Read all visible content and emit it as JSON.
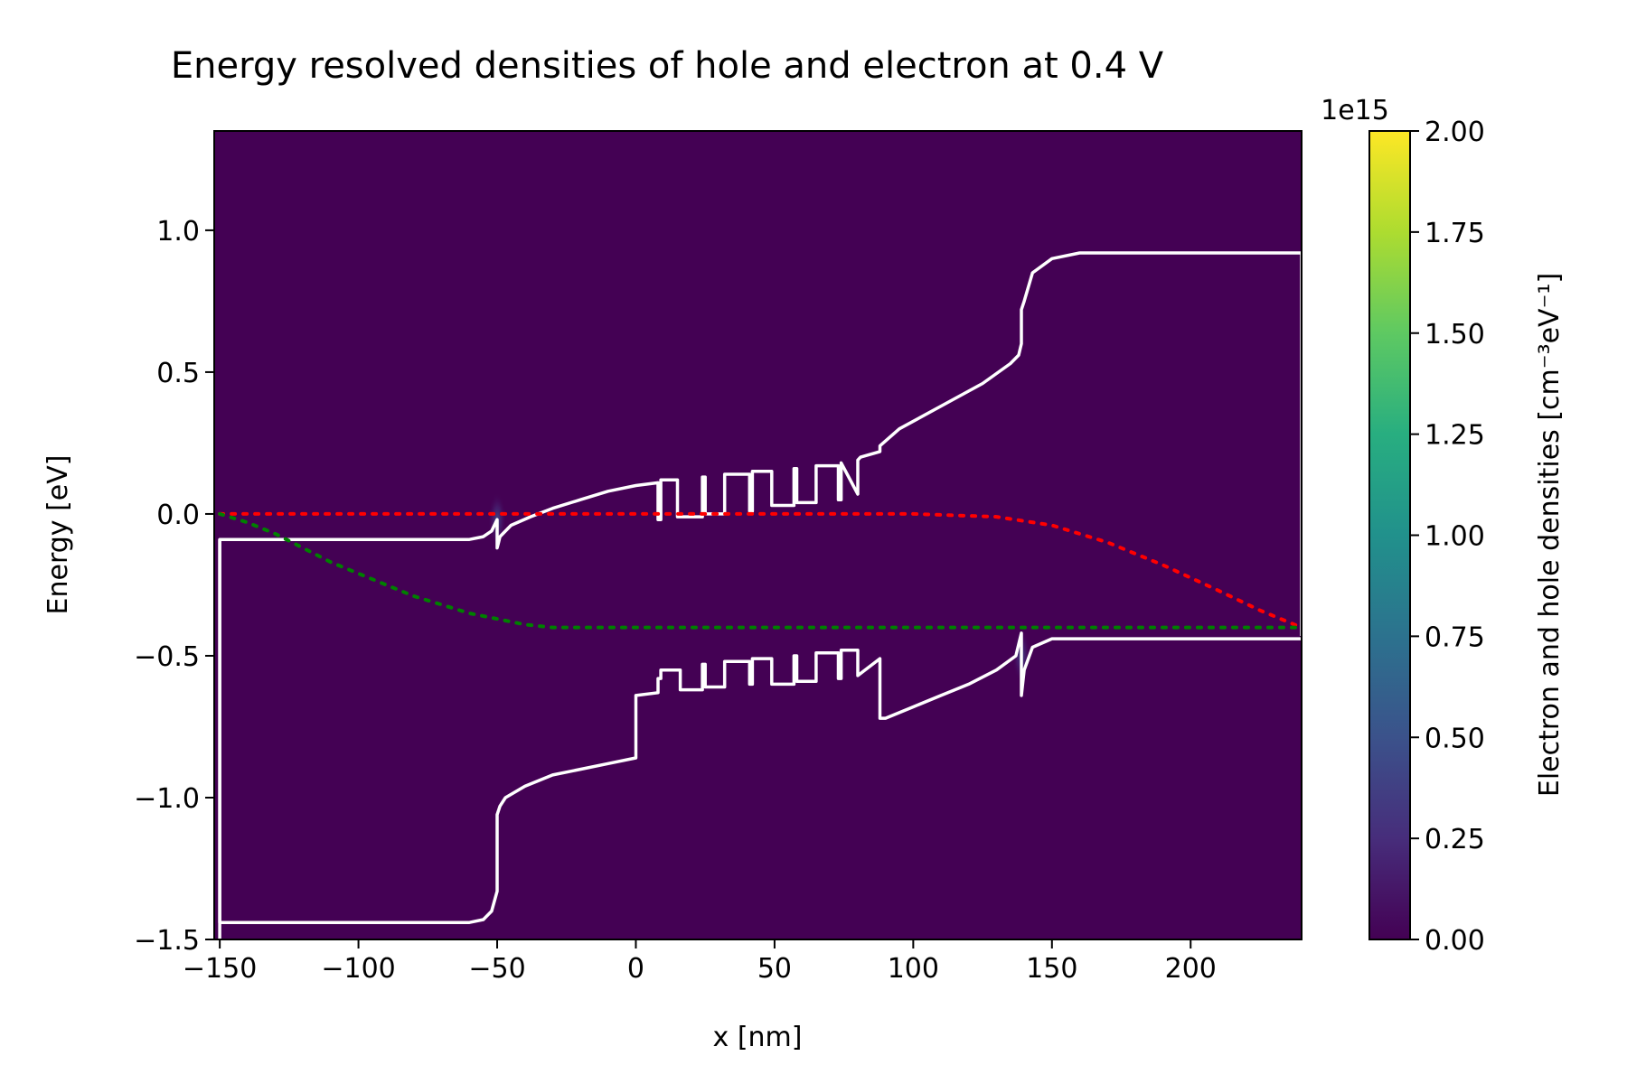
{
  "chart_data": {
    "type": "heatmap",
    "title": "Energy resolved densities of hole and electron at 0.4 V",
    "xlabel": "x [nm]",
    "ylabel": "Energy [eV]",
    "xlim": [
      -152,
      240
    ],
    "ylim": [
      -1.5,
      1.35
    ],
    "xticks": [
      -150,
      -100,
      -50,
      0,
      50,
      100,
      150,
      200
    ],
    "xtick_labels": [
      "−150",
      "−100",
      "−50",
      "0",
      "50",
      "100",
      "150",
      "200"
    ],
    "yticks": [
      -1.5,
      -1.0,
      -0.5,
      0.0,
      0.5,
      1.0
    ],
    "ytick_labels": [
      "−1.5",
      "−1.0",
      "−0.5",
      "0.0",
      "0.5",
      "1.0"
    ],
    "grid": false,
    "colormap": "viridis",
    "background_color": "#440154",
    "colorbar": {
      "label": "Electron and hole densities [cm⁻³eV⁻¹]",
      "multiplier": "1e15",
      "range": [
        0,
        2.0
      ],
      "ticks": [
        0.0,
        0.25,
        0.5,
        0.75,
        1.0,
        1.25,
        1.5,
        1.75,
        2.0
      ],
      "tick_labels": [
        "0.00",
        "0.25",
        "0.50",
        "0.75",
        "1.00",
        "1.25",
        "1.50",
        "1.75",
        "2.00"
      ]
    },
    "density_spots": [
      {
        "x": -50,
        "y": -0.02,
        "intensity": 0.5
      },
      {
        "x": 139,
        "y": -0.5,
        "intensity": 0.5
      }
    ],
    "series": [
      {
        "color": "#ffffff",
        "style": "solid",
        "x": [
          -150,
          -150,
          -149,
          -60,
          -55,
          -52,
          -50,
          -50,
          -50,
          -49.5,
          -49,
          -45,
          -38,
          -30,
          -20,
          -10,
          0,
          0,
          8,
          8,
          9,
          9,
          15,
          15,
          24,
          24,
          25,
          25,
          32,
          32,
          41,
          41,
          42,
          42,
          49,
          49,
          57,
          57,
          58,
          58,
          65,
          65,
          73,
          73,
          74,
          74,
          80,
          80,
          81,
          88,
          88,
          95,
          110,
          125,
          135,
          138,
          139,
          139,
          140,
          143,
          150,
          160,
          240,
          240
        ],
        "y": [
          -1.5,
          -0.09,
          -0.09,
          -0.09,
          -0.08,
          -0.06,
          -0.02,
          -0.12,
          -0.12,
          -0.1,
          -0.08,
          -0.04,
          -0.01,
          0.02,
          0.05,
          0.08,
          0.1,
          0.1,
          0.11,
          -0.02,
          -0.02,
          0.12,
          0.12,
          -0.01,
          -0.01,
          0.13,
          0.13,
          -0.0,
          -0.0,
          0.14,
          0.14,
          0.01,
          0.01,
          0.15,
          0.15,
          0.03,
          0.03,
          0.16,
          0.16,
          0.04,
          0.04,
          0.17,
          0.17,
          0.05,
          0.05,
          0.18,
          0.07,
          0.19,
          0.2,
          0.22,
          0.24,
          0.3,
          0.38,
          0.46,
          0.53,
          0.56,
          0.6,
          0.72,
          0.75,
          0.85,
          0.9,
          0.92,
          0.92,
          -0.43
        ]
      },
      {
        "color": "#ffffff",
        "style": "solid",
        "x": [
          -150,
          -150,
          -100,
          -60,
          -55,
          -52,
          -50,
          -50,
          -49,
          -47,
          -40,
          -30,
          -20,
          -10,
          0,
          0,
          8,
          8,
          9,
          9,
          16,
          16,
          24,
          24,
          25,
          25,
          32,
          32,
          41,
          41,
          42,
          42,
          49,
          49,
          57,
          57,
          58,
          58,
          65,
          65,
          73,
          73,
          74,
          74,
          80,
          80,
          88,
          88,
          90,
          100,
          110,
          120,
          130,
          137,
          139,
          139,
          140,
          143,
          150,
          240
        ],
        "y": [
          -0.09,
          -1.44,
          -1.44,
          -1.44,
          -1.43,
          -1.4,
          -1.33,
          -1.06,
          -1.03,
          -1.0,
          -0.96,
          -0.92,
          -0.9,
          -0.88,
          -0.86,
          -0.64,
          -0.63,
          -0.58,
          -0.58,
          -0.55,
          -0.55,
          -0.62,
          -0.62,
          -0.53,
          -0.53,
          -0.61,
          -0.61,
          -0.52,
          -0.52,
          -0.6,
          -0.6,
          -0.51,
          -0.51,
          -0.6,
          -0.6,
          -0.5,
          -0.5,
          -0.59,
          -0.59,
          -0.49,
          -0.49,
          -0.58,
          -0.58,
          -0.48,
          -0.48,
          -0.57,
          -0.51,
          -0.72,
          -0.72,
          -0.68,
          -0.64,
          -0.6,
          -0.55,
          -0.5,
          -0.42,
          -0.64,
          -0.55,
          -0.47,
          -0.44,
          -0.44
        ]
      },
      {
        "color": "#ff0000",
        "style": "dotted",
        "x": [
          -150,
          -100,
          -50,
          0,
          50,
          100,
          130,
          150,
          170,
          190,
          210,
          225,
          240
        ],
        "y": [
          0.0,
          0.0,
          0.0,
          0.0,
          0.0,
          0.0,
          -0.01,
          -0.04,
          -0.1,
          -0.18,
          -0.27,
          -0.34,
          -0.4
        ]
      },
      {
        "color": "#008000",
        "style": "dotted",
        "x": [
          -150,
          -140,
          -130,
          -120,
          -110,
          -100,
          -90,
          -80,
          -70,
          -60,
          -50,
          -40,
          -30,
          -20,
          0,
          50,
          100,
          150,
          200,
          240
        ],
        "y": [
          0.0,
          -0.03,
          -0.07,
          -0.12,
          -0.17,
          -0.21,
          -0.25,
          -0.29,
          -0.32,
          -0.35,
          -0.37,
          -0.39,
          -0.4,
          -0.4,
          -0.4,
          -0.4,
          -0.4,
          -0.4,
          -0.4,
          -0.4
        ]
      }
    ]
  }
}
